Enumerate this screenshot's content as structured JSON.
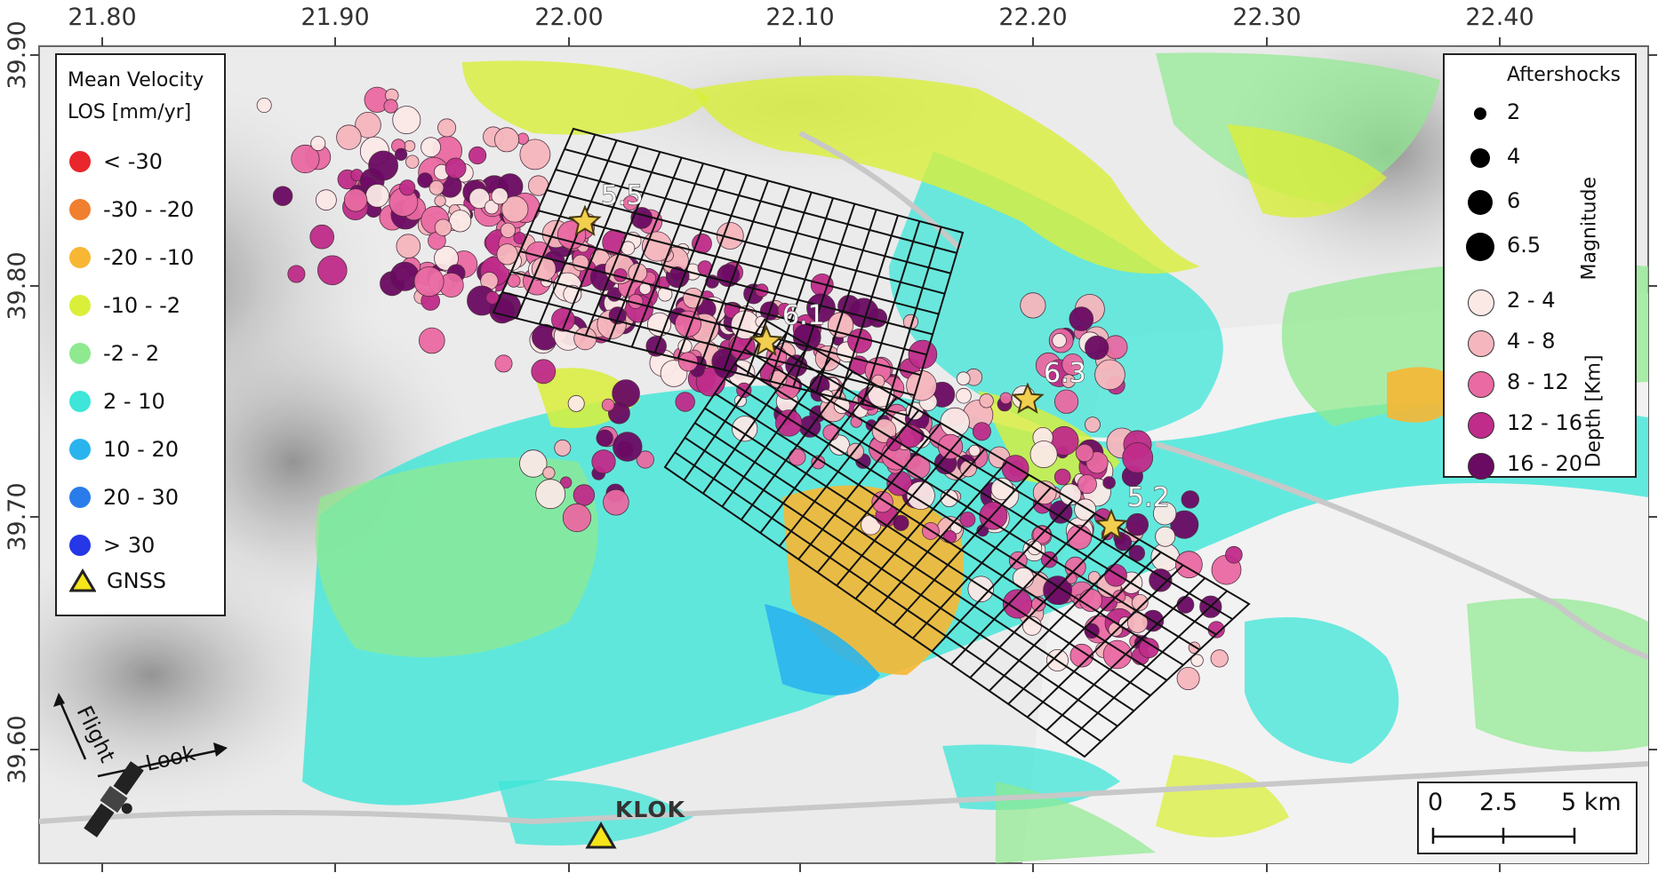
{
  "axes": {
    "x_ticks": [
      "21.80",
      "21.90",
      "22.00",
      "22.10",
      "22.20",
      "22.30",
      "22.40"
    ],
    "y_ticks": [
      "39.90",
      "39.80",
      "39.70",
      "39.60"
    ]
  },
  "velocity_legend": {
    "title_line1": "Mean Velocity",
    "title_line2": "LOS [mm/yr]",
    "items": [
      {
        "label": "< -30",
        "color": "#e8262b"
      },
      {
        "label": "-30 - -20",
        "color": "#f07f2f"
      },
      {
        "label": "-20 - -10",
        "color": "#f7b733"
      },
      {
        "label": "-10 - -2",
        "color": "#d9ef3a"
      },
      {
        "label": "-2 - 2",
        "color": "#8fe98f"
      },
      {
        "label": "2 - 10",
        "color": "#3de6d8"
      },
      {
        "label": "10 - 20",
        "color": "#2ab4ee"
      },
      {
        "label": "20 - 30",
        "color": "#2a7cea"
      },
      {
        "label": "> 30",
        "color": "#2537e6"
      }
    ],
    "gnss_label": "GNSS"
  },
  "aftershock_legend": {
    "title": "Aftershocks",
    "magnitude_label": "Magnitude",
    "depth_label": "Depth [Km]",
    "magnitudes": [
      "2",
      "4",
      "6",
      "6.5"
    ],
    "depths": [
      {
        "label": "2 - 4",
        "color": "#fbe9e6"
      },
      {
        "label": "4 - 8",
        "color": "#f6b6bd"
      },
      {
        "label": "8 - 12",
        "color": "#ea6aa3"
      },
      {
        "label": "12 - 16",
        "color": "#c02c8a"
      },
      {
        "label": "16 - 20",
        "color": "#6b0a63"
      }
    ]
  },
  "earthquakes": [
    "5.5",
    "6.1",
    "6.3",
    "5.2"
  ],
  "station": "KLOK",
  "scale_bar": {
    "labels": [
      "0",
      "2.5",
      "5 km"
    ]
  },
  "inset": {
    "flight": "Flight",
    "look": "Look"
  }
}
